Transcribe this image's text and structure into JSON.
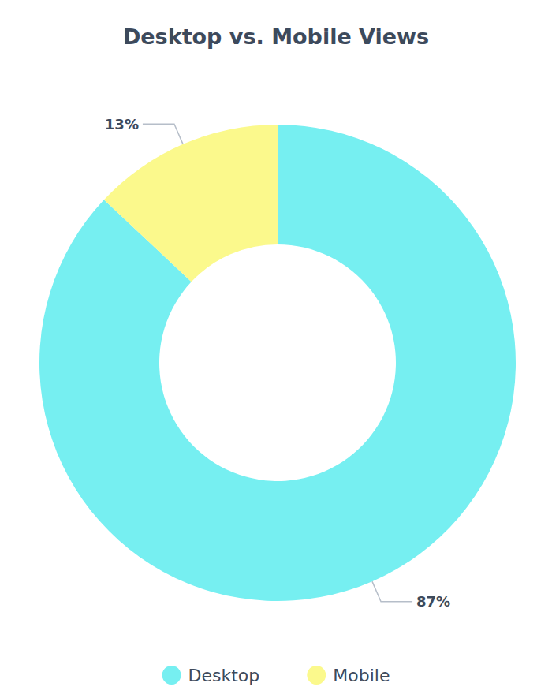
{
  "chart_data": {
    "type": "pie",
    "title": "Desktop vs. Mobile Views",
    "categories": [
      "Desktop",
      "Mobile"
    ],
    "values": [
      87,
      13
    ],
    "value_labels": [
      "87%",
      "13%"
    ],
    "colors": [
      "#76eff1",
      "#fbf98c"
    ],
    "data_labels": true,
    "legend": "bottom"
  }
}
